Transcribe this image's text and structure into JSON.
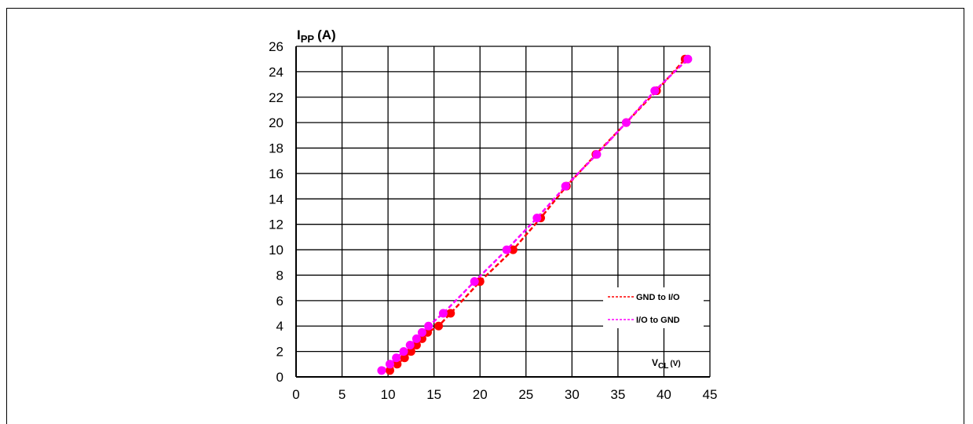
{
  "chart_data": {
    "type": "line",
    "title": "",
    "xlabel": "VCL (V)",
    "ylabel": "IPP (A)",
    "ylabel_main": "I",
    "ylabel_sub": "PP",
    "ylabel_unit": "(A)",
    "xlabel_main": "V",
    "xlabel_sub": "CL",
    "xlabel_unit": "(V)",
    "xlim": [
      0,
      45
    ],
    "ylim": [
      0,
      26
    ],
    "x_ticks": [
      0,
      5,
      10,
      15,
      20,
      25,
      30,
      35,
      40,
      45
    ],
    "y_ticks": [
      0,
      2,
      4,
      6,
      8,
      10,
      12,
      14,
      16,
      18,
      20,
      22,
      24,
      26
    ],
    "grid": true,
    "legend_position": "bottom-right",
    "series": [
      {
        "name": "GND to I/O",
        "color": "#ff0000",
        "line_style": "dashed",
        "x": [
          10.2,
          11.0,
          11.8,
          12.5,
          13.1,
          13.7,
          14.3,
          15.5,
          16.8,
          20.0,
          23.6,
          26.6,
          29.4,
          32.6,
          35.9,
          39.2,
          42.3
        ],
        "y": [
          0.5,
          1.0,
          1.5,
          2.0,
          2.5,
          3.0,
          3.5,
          4.0,
          5.0,
          7.5,
          10.0,
          12.5,
          15.0,
          17.5,
          20.0,
          22.5,
          25.0
        ]
      },
      {
        "name": "I/O to GND",
        "color": "#ff00ff",
        "line_style": "dashed",
        "x": [
          9.3,
          10.2,
          10.9,
          11.7,
          12.4,
          13.1,
          13.7,
          14.4,
          16.0,
          19.4,
          22.9,
          26.2,
          29.3,
          32.7,
          35.9,
          39.0,
          42.6
        ],
        "y": [
          0.5,
          1.0,
          1.5,
          2.0,
          2.5,
          3.0,
          3.5,
          4.0,
          5.0,
          7.5,
          10.0,
          12.5,
          15.0,
          17.5,
          20.0,
          22.5,
          25.0
        ]
      }
    ]
  }
}
